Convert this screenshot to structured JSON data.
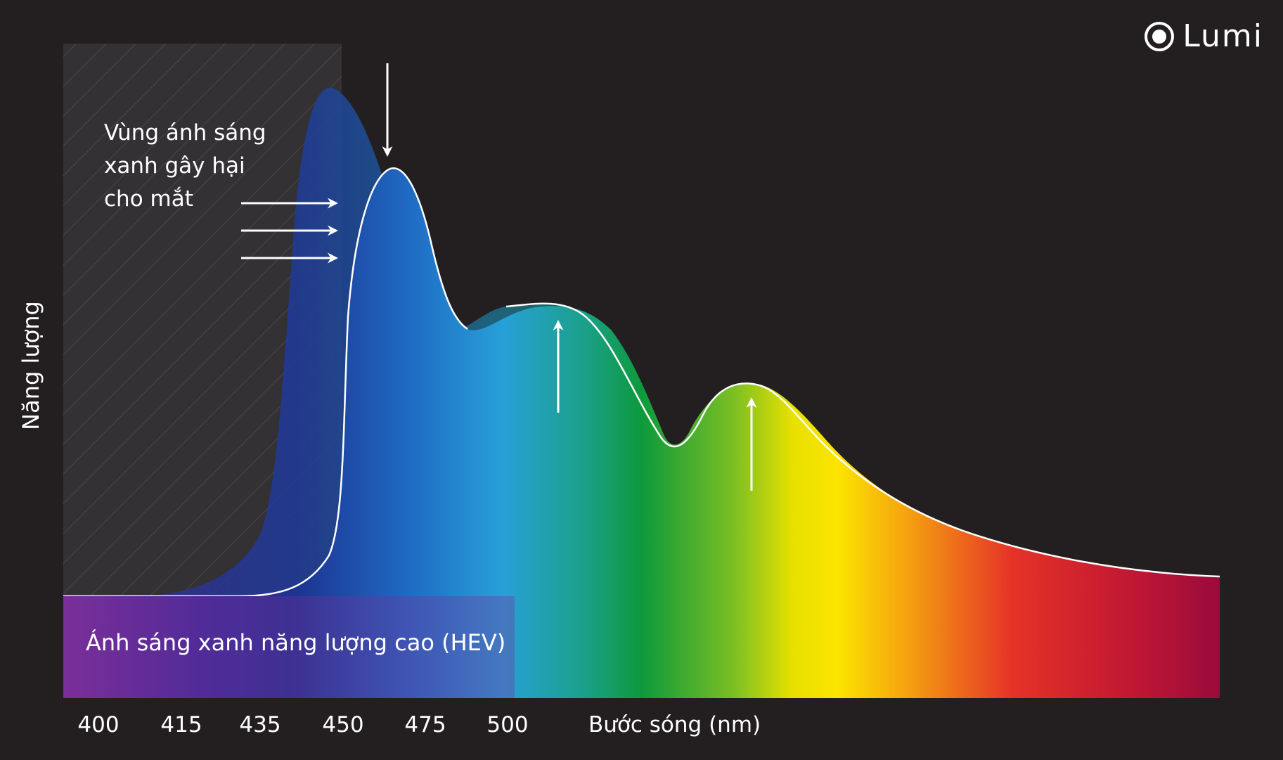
{
  "logo": {
    "text": "Lumi",
    "icon": "lumi-logo-icon"
  },
  "annotations": {
    "harmful_zone_lines": [
      "Vùng ánh sáng",
      "xanh gây hại",
      "cho mắt"
    ],
    "hev_band": "Ánh sáng xanh năng lượng cao (HEV)"
  },
  "colors": {
    "background": "#231f20",
    "hatch_zone": "#333133",
    "arrows": "#ffffff"
  },
  "chart_data": {
    "type": "area",
    "title": "",
    "xlabel": "Bước sóng (nm)",
    "ylabel": "Năng lượng",
    "x_ticks": [
      "400",
      "415",
      "435",
      "450",
      "475",
      "500"
    ],
    "y_scale": "relative",
    "series": [
      {
        "points": [
          [
            400,
            0
          ],
          [
            415,
            0.01
          ],
          [
            425,
            0.05
          ],
          [
            430,
            0.2
          ],
          [
            435,
            0.6
          ],
          [
            438,
            0.85
          ],
          [
            441,
            1.0
          ],
          [
            444,
            0.95
          ],
          [
            448,
            0.7
          ],
          [
            452,
            0.5
          ],
          [
            457,
            0.48
          ],
          [
            463,
            0.52
          ],
          [
            470,
            0.47
          ],
          [
            477,
            0.32
          ],
          [
            481,
            0.31
          ],
          [
            486,
            0.37
          ],
          [
            500,
            0.25
          ],
          [
            530,
            0.08
          ],
          [
            560,
            0.0
          ]
        ]
      },
      {
        "points": [
          [
            400,
            0
          ],
          [
            420,
            0.0
          ],
          [
            438,
            0.02
          ],
          [
            446,
            0.15
          ],
          [
            448,
            0.55
          ],
          [
            451,
            0.78
          ],
          [
            454,
            0.84
          ],
          [
            458,
            0.72
          ],
          [
            462,
            0.55
          ],
          [
            470,
            0.55
          ],
          [
            475,
            0.55
          ],
          [
            477,
            0.34
          ],
          [
            481,
            0.33
          ],
          [
            486,
            0.45
          ],
          [
            500,
            0.23
          ],
          [
            530,
            0.07
          ],
          [
            560,
            0.01
          ]
        ]
      }
    ],
    "regions": [
      {
        "from": "400",
        "to": "450",
        "style": "hatched",
        "label_ref": "harmful_zone_lines"
      },
      {
        "from": "400",
        "to": "500",
        "style": "band",
        "label_ref": "hev_band"
      }
    ],
    "arrows": [
      "down-peak",
      "right-1",
      "right-2",
      "right-3",
      "up-green",
      "up-yellow"
    ],
    "grid": false,
    "legend": "none"
  }
}
